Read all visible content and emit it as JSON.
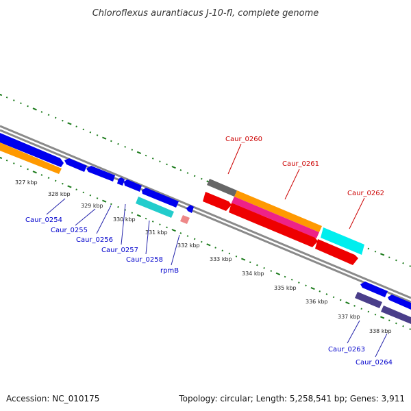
{
  "title": "Chloroflexus aurantiacus J-10-fl, complete genome",
  "footer": {
    "accession": "Accession: NC_010175",
    "summary": "Topology: circular; Length: 5,258,541 bp; Genes: 3,911"
  },
  "colors": {
    "backbone": "#8a8a8a",
    "tick": "#1a7a1a",
    "label_reverse": "#0000cc",
    "label_forward": "#cc0000",
    "leader": "#2222aa",
    "leader_forward": "#cc0000"
  },
  "scale_labels": [
    {
      "text": "327 kbp"
    },
    {
      "text": "328 kbp"
    },
    {
      "text": "329 kbp"
    },
    {
      "text": "330 kbp"
    },
    {
      "text": "331 kbp"
    },
    {
      "text": "332 kbp"
    },
    {
      "text": "333 kbp"
    },
    {
      "text": "334 kbp"
    },
    {
      "text": "335 kbp"
    },
    {
      "text": "336 kbp"
    },
    {
      "text": "337 kbp"
    },
    {
      "text": "338 kbp"
    }
  ],
  "genes_reverse": [
    {
      "name": "Caur_0254"
    },
    {
      "name": "Caur_0255"
    },
    {
      "name": "Caur_0256"
    },
    {
      "name": "Caur_0257"
    },
    {
      "name": "Caur_0258"
    },
    {
      "name": "rpmB"
    },
    {
      "name": "Caur_0263"
    },
    {
      "name": "Caur_0264"
    }
  ],
  "genes_forward": [
    {
      "name": "Caur_0260"
    },
    {
      "name": "Caur_0261"
    },
    {
      "name": "Caur_0262"
    }
  ]
}
